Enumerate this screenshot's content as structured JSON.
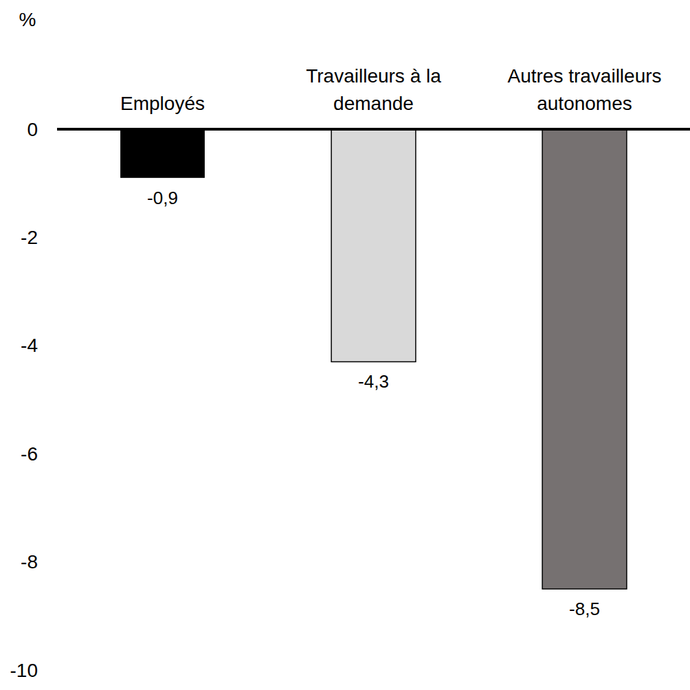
{
  "chart_data": {
    "type": "bar",
    "y_label": "%",
    "categories": [
      "Employés",
      "Travailleurs à la demande",
      "Autres travailleurs autonomes"
    ],
    "values": [
      -0.9,
      -4.3,
      -8.5
    ],
    "value_labels": [
      "-0,9",
      "-4,3",
      "-8,5"
    ],
    "colors": [
      "#000000",
      "#d9d9d9",
      "#767171"
    ],
    "ylim": [
      -10,
      0
    ],
    "yticks": [
      0,
      -2,
      -4,
      -6,
      -8,
      -10
    ],
    "data_labels": true,
    "grid": false
  }
}
